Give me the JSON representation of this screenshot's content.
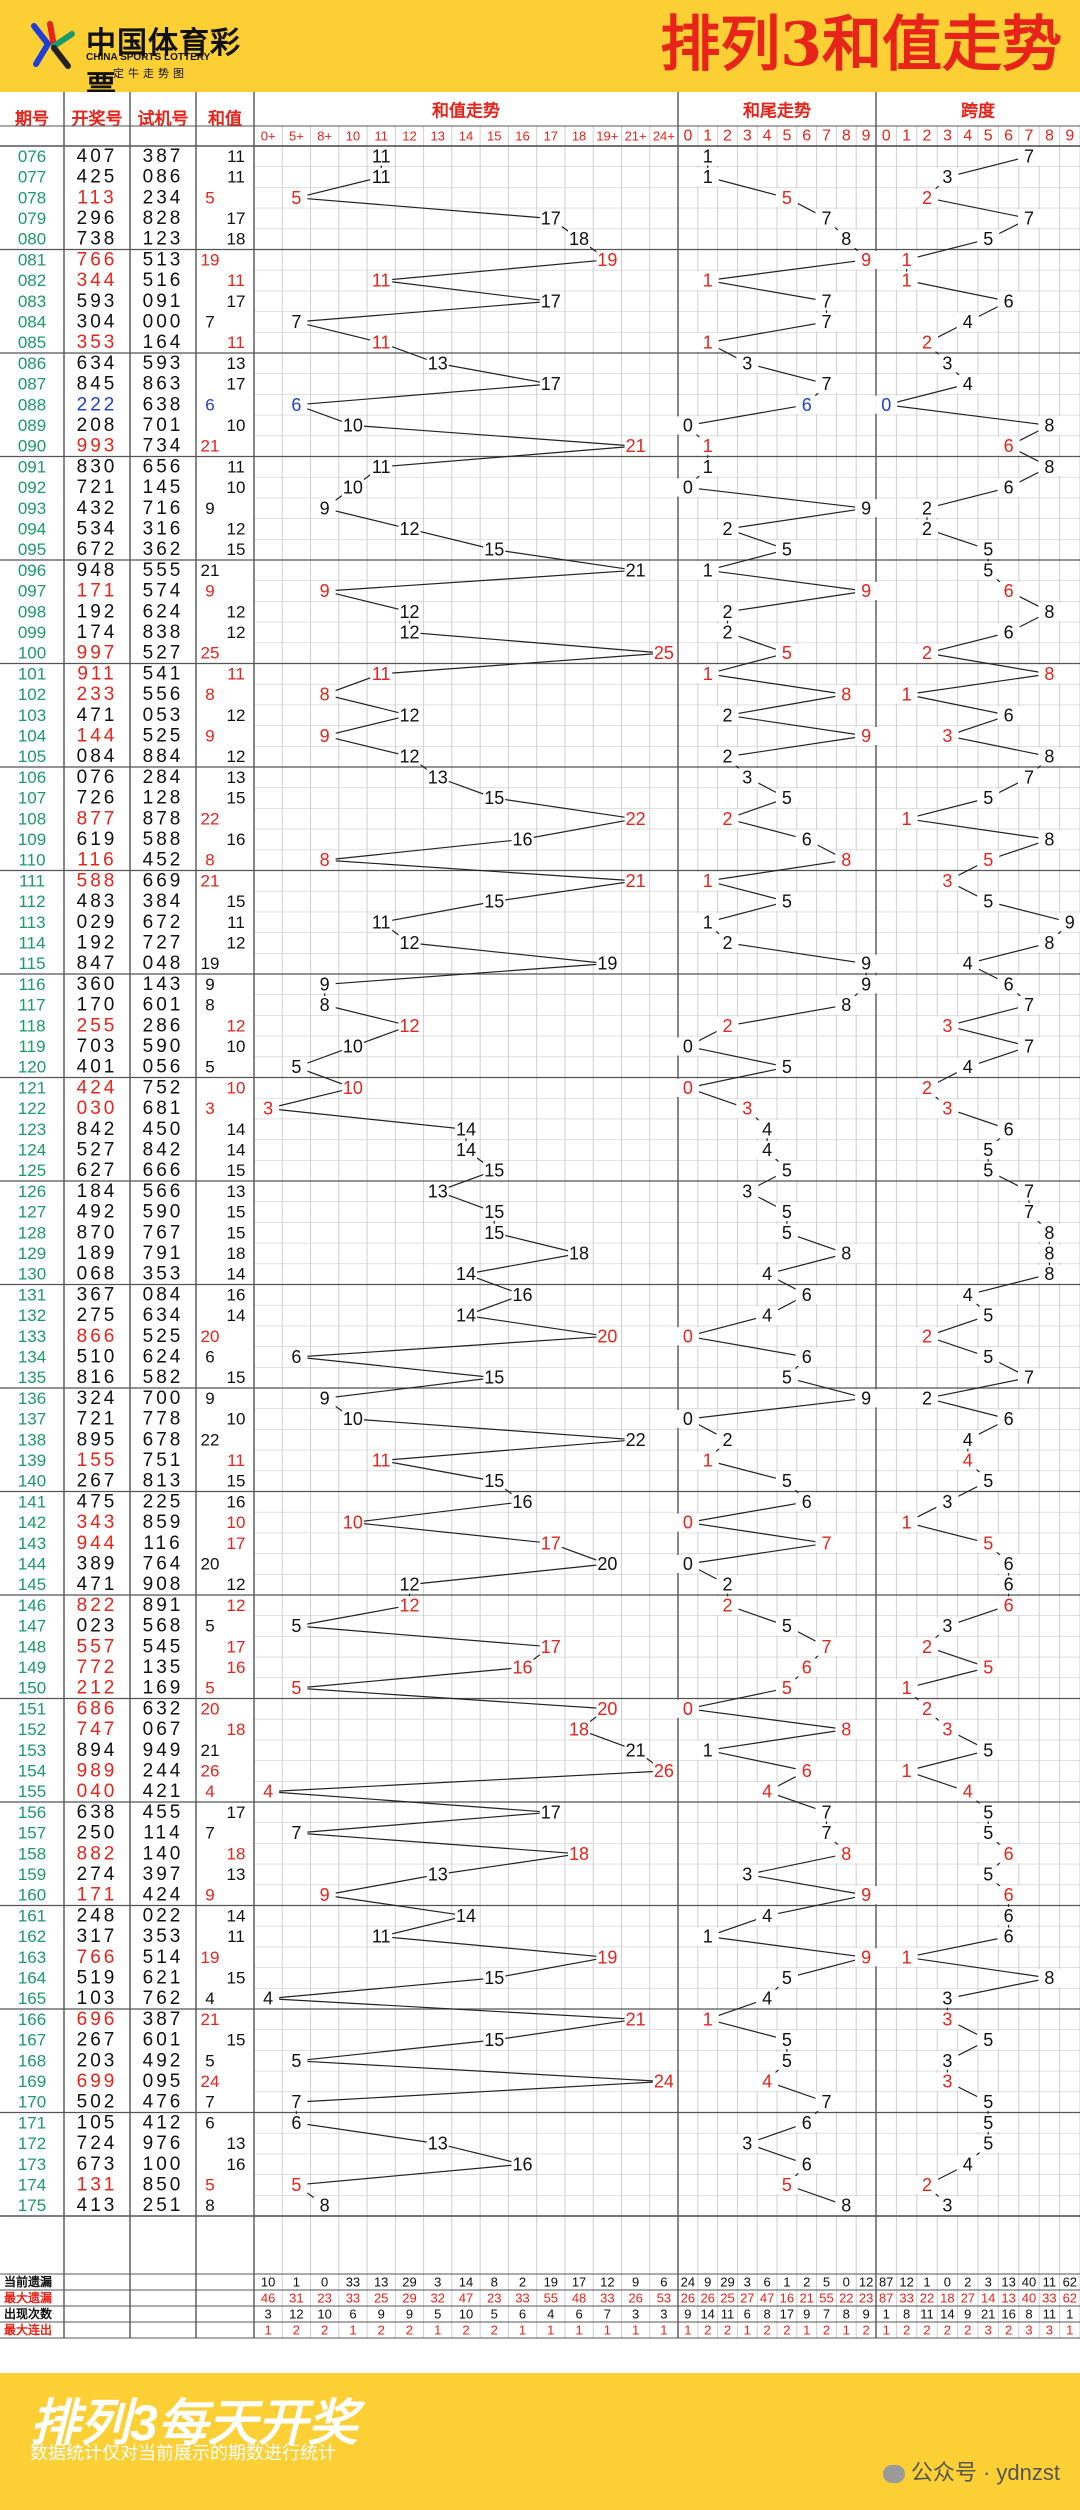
{
  "header": {
    "logo_main": "中国体育彩票",
    "logo_en": "CHINA SPORTS LOTTERY",
    "logo_sub": "一定牛走势图",
    "title": "排列3和值走势"
  },
  "footer": {
    "title": "排列3每天开奖",
    "note": "数据统计仅对当前展示的期数进行统计",
    "wechat": "公众号 · ydnzst"
  },
  "colors": {
    "header_bg": "#fccf35",
    "title_red": "#e8231a",
    "issue_green": "#1a9a6b",
    "hit_red": "#e8231a",
    "hit_blue": "#1f3ed8",
    "grid": "#cfcfcf",
    "group_line": "#555555"
  },
  "chart_data": {
    "type": "table",
    "title": "排列3和值走势",
    "columns": {
      "issue": "期号",
      "draw": "开奖号",
      "test": "试机号",
      "sum": "和值",
      "sum_trend": "和值走势",
      "tail_trend": "和尾走势",
      "span": "跨度"
    },
    "sum_bins": [
      "0+",
      "5+",
      "8+",
      "10",
      "11",
      "12",
      "13",
      "14",
      "15",
      "16",
      "17",
      "18",
      "19+",
      "21+",
      "24+"
    ],
    "digits": [
      "0",
      "1",
      "2",
      "3",
      "4",
      "5",
      "6",
      "7",
      "8",
      "9"
    ],
    "rows": [
      {
        "issue": "076",
        "draw": "407",
        "test": "387",
        "sum": 11,
        "color": "black"
      },
      {
        "issue": "077",
        "draw": "425",
        "test": "086",
        "sum": 11,
        "color": "black"
      },
      {
        "issue": "078",
        "draw": "113",
        "test": "234",
        "sum": 5,
        "color": "red"
      },
      {
        "issue": "079",
        "draw": "296",
        "test": "828",
        "sum": 17,
        "color": "black"
      },
      {
        "issue": "080",
        "draw": "738",
        "test": "123",
        "sum": 18,
        "color": "black"
      },
      {
        "issue": "081",
        "draw": "766",
        "test": "513",
        "sum": 19,
        "color": "red"
      },
      {
        "issue": "082",
        "draw": "344",
        "test": "516",
        "sum": 11,
        "color": "red"
      },
      {
        "issue": "083",
        "draw": "593",
        "test": "091",
        "sum": 17,
        "color": "black"
      },
      {
        "issue": "084",
        "draw": "304",
        "test": "000",
        "sum": 7,
        "color": "black"
      },
      {
        "issue": "085",
        "draw": "353",
        "test": "164",
        "sum": 11,
        "color": "red"
      },
      {
        "issue": "086",
        "draw": "634",
        "test": "593",
        "sum": 13,
        "color": "black"
      },
      {
        "issue": "087",
        "draw": "845",
        "test": "863",
        "sum": 17,
        "color": "black"
      },
      {
        "issue": "088",
        "draw": "222",
        "test": "638",
        "sum": 6,
        "color": "blue"
      },
      {
        "issue": "089",
        "draw": "208",
        "test": "701",
        "sum": 10,
        "color": "black"
      },
      {
        "issue": "090",
        "draw": "993",
        "test": "734",
        "sum": 21,
        "color": "red"
      },
      {
        "issue": "091",
        "draw": "830",
        "test": "656",
        "sum": 11,
        "color": "black"
      },
      {
        "issue": "092",
        "draw": "721",
        "test": "145",
        "sum": 10,
        "color": "black"
      },
      {
        "issue": "093",
        "draw": "432",
        "test": "716",
        "sum": 9,
        "color": "black"
      },
      {
        "issue": "094",
        "draw": "534",
        "test": "316",
        "sum": 12,
        "color": "black"
      },
      {
        "issue": "095",
        "draw": "672",
        "test": "362",
        "sum": 15,
        "color": "black"
      },
      {
        "issue": "096",
        "draw": "948",
        "test": "555",
        "sum": 21,
        "color": "black"
      },
      {
        "issue": "097",
        "draw": "171",
        "test": "574",
        "sum": 9,
        "color": "red"
      },
      {
        "issue": "098",
        "draw": "192",
        "test": "624",
        "sum": 12,
        "color": "black"
      },
      {
        "issue": "099",
        "draw": "174",
        "test": "838",
        "sum": 12,
        "color": "black"
      },
      {
        "issue": "100",
        "draw": "997",
        "test": "527",
        "sum": 25,
        "color": "red"
      },
      {
        "issue": "101",
        "draw": "911",
        "test": "541",
        "sum": 11,
        "color": "red"
      },
      {
        "issue": "102",
        "draw": "233",
        "test": "556",
        "sum": 8,
        "color": "red"
      },
      {
        "issue": "103",
        "draw": "471",
        "test": "053",
        "sum": 12,
        "color": "black"
      },
      {
        "issue": "104",
        "draw": "144",
        "test": "525",
        "sum": 9,
        "color": "red"
      },
      {
        "issue": "105",
        "draw": "084",
        "test": "884",
        "sum": 12,
        "color": "black"
      },
      {
        "issue": "106",
        "draw": "076",
        "test": "284",
        "sum": 13,
        "color": "black"
      },
      {
        "issue": "107",
        "draw": "726",
        "test": "128",
        "sum": 15,
        "color": "black"
      },
      {
        "issue": "108",
        "draw": "877",
        "test": "878",
        "sum": 22,
        "color": "red"
      },
      {
        "issue": "109",
        "draw": "619",
        "test": "588",
        "sum": 16,
        "color": "black"
      },
      {
        "issue": "110",
        "draw": "116",
        "test": "452",
        "sum": 8,
        "color": "red"
      },
      {
        "issue": "111",
        "draw": "588",
        "test": "669",
        "sum": 21,
        "color": "red"
      },
      {
        "issue": "112",
        "draw": "483",
        "test": "384",
        "sum": 15,
        "color": "black"
      },
      {
        "issue": "113",
        "draw": "029",
        "test": "672",
        "sum": 11,
        "color": "black"
      },
      {
        "issue": "114",
        "draw": "192",
        "test": "727",
        "sum": 12,
        "color": "black"
      },
      {
        "issue": "115",
        "draw": "847",
        "test": "048",
        "sum": 19,
        "color": "black"
      },
      {
        "issue": "116",
        "draw": "360",
        "test": "143",
        "sum": 9,
        "color": "black"
      },
      {
        "issue": "117",
        "draw": "170",
        "test": "601",
        "sum": 8,
        "color": "black"
      },
      {
        "issue": "118",
        "draw": "255",
        "test": "286",
        "sum": 12,
        "color": "red"
      },
      {
        "issue": "119",
        "draw": "703",
        "test": "590",
        "sum": 10,
        "color": "black"
      },
      {
        "issue": "120",
        "draw": "401",
        "test": "056",
        "sum": 5,
        "color": "black"
      },
      {
        "issue": "121",
        "draw": "424",
        "test": "752",
        "sum": 10,
        "color": "red"
      },
      {
        "issue": "122",
        "draw": "030",
        "test": "681",
        "sum": 3,
        "color": "red"
      },
      {
        "issue": "123",
        "draw": "842",
        "test": "450",
        "sum": 14,
        "color": "black"
      },
      {
        "issue": "124",
        "draw": "527",
        "test": "842",
        "sum": 14,
        "color": "black"
      },
      {
        "issue": "125",
        "draw": "627",
        "test": "666",
        "sum": 15,
        "color": "black"
      },
      {
        "issue": "126",
        "draw": "184",
        "test": "566",
        "sum": 13,
        "color": "black"
      },
      {
        "issue": "127",
        "draw": "492",
        "test": "590",
        "sum": 15,
        "color": "black"
      },
      {
        "issue": "128",
        "draw": "870",
        "test": "767",
        "sum": 15,
        "color": "black"
      },
      {
        "issue": "129",
        "draw": "189",
        "test": "791",
        "sum": 18,
        "color": "black"
      },
      {
        "issue": "130",
        "draw": "068",
        "test": "353",
        "sum": 14,
        "color": "black"
      },
      {
        "issue": "131",
        "draw": "367",
        "test": "084",
        "sum": 16,
        "color": "black"
      },
      {
        "issue": "132",
        "draw": "275",
        "test": "634",
        "sum": 14,
        "color": "black"
      },
      {
        "issue": "133",
        "draw": "866",
        "test": "525",
        "sum": 20,
        "color": "red"
      },
      {
        "issue": "134",
        "draw": "510",
        "test": "624",
        "sum": 6,
        "color": "black"
      },
      {
        "issue": "135",
        "draw": "816",
        "test": "582",
        "sum": 15,
        "color": "black"
      },
      {
        "issue": "136",
        "draw": "324",
        "test": "700",
        "sum": 9,
        "color": "black"
      },
      {
        "issue": "137",
        "draw": "721",
        "test": "778",
        "sum": 10,
        "color": "black"
      },
      {
        "issue": "138",
        "draw": "895",
        "test": "678",
        "sum": 22,
        "color": "black"
      },
      {
        "issue": "139",
        "draw": "155",
        "test": "751",
        "sum": 11,
        "color": "red"
      },
      {
        "issue": "140",
        "draw": "267",
        "test": "813",
        "sum": 15,
        "color": "black"
      },
      {
        "issue": "141",
        "draw": "475",
        "test": "225",
        "sum": 16,
        "color": "black"
      },
      {
        "issue": "142",
        "draw": "343",
        "test": "859",
        "sum": 10,
        "color": "red"
      },
      {
        "issue": "143",
        "draw": "944",
        "test": "116",
        "sum": 17,
        "color": "red"
      },
      {
        "issue": "144",
        "draw": "389",
        "test": "764",
        "sum": 20,
        "color": "black"
      },
      {
        "issue": "145",
        "draw": "471",
        "test": "908",
        "sum": 12,
        "color": "black"
      },
      {
        "issue": "146",
        "draw": "822",
        "test": "891",
        "sum": 12,
        "color": "red"
      },
      {
        "issue": "147",
        "draw": "023",
        "test": "568",
        "sum": 5,
        "color": "black"
      },
      {
        "issue": "148",
        "draw": "557",
        "test": "545",
        "sum": 17,
        "color": "red"
      },
      {
        "issue": "149",
        "draw": "772",
        "test": "135",
        "sum": 16,
        "color": "red"
      },
      {
        "issue": "150",
        "draw": "212",
        "test": "169",
        "sum": 5,
        "color": "red"
      },
      {
        "issue": "151",
        "draw": "686",
        "test": "632",
        "sum": 20,
        "color": "red"
      },
      {
        "issue": "152",
        "draw": "747",
        "test": "067",
        "sum": 18,
        "color": "red"
      },
      {
        "issue": "153",
        "draw": "894",
        "test": "949",
        "sum": 21,
        "color": "black"
      },
      {
        "issue": "154",
        "draw": "989",
        "test": "244",
        "sum": 26,
        "color": "red"
      },
      {
        "issue": "155",
        "draw": "040",
        "test": "421",
        "sum": 4,
        "color": "red"
      },
      {
        "issue": "156",
        "draw": "638",
        "test": "455",
        "sum": 17,
        "color": "black"
      },
      {
        "issue": "157",
        "draw": "250",
        "test": "114",
        "sum": 7,
        "color": "black"
      },
      {
        "issue": "158",
        "draw": "882",
        "test": "140",
        "sum": 18,
        "color": "red"
      },
      {
        "issue": "159",
        "draw": "274",
        "test": "397",
        "sum": 13,
        "color": "black"
      },
      {
        "issue": "160",
        "draw": "171",
        "test": "424",
        "sum": 9,
        "color": "red"
      },
      {
        "issue": "161",
        "draw": "248",
        "test": "022",
        "sum": 14,
        "color": "black"
      },
      {
        "issue": "162",
        "draw": "317",
        "test": "353",
        "sum": 11,
        "color": "black"
      },
      {
        "issue": "163",
        "draw": "766",
        "test": "514",
        "sum": 19,
        "color": "red"
      },
      {
        "issue": "164",
        "draw": "519",
        "test": "621",
        "sum": 15,
        "color": "black"
      },
      {
        "issue": "165",
        "draw": "103",
        "test": "762",
        "sum": 4,
        "color": "black"
      },
      {
        "issue": "166",
        "draw": "696",
        "test": "387",
        "sum": 21,
        "color": "red"
      },
      {
        "issue": "167",
        "draw": "267",
        "test": "601",
        "sum": 15,
        "color": "black"
      },
      {
        "issue": "168",
        "draw": "203",
        "test": "492",
        "sum": 5,
        "color": "black"
      },
      {
        "issue": "169",
        "draw": "699",
        "test": "095",
        "sum": 24,
        "color": "red"
      },
      {
        "issue": "170",
        "draw": "502",
        "test": "476",
        "sum": 7,
        "color": "black"
      },
      {
        "issue": "171",
        "draw": "105",
        "test": "412",
        "sum": 6,
        "color": "black"
      },
      {
        "issue": "172",
        "draw": "724",
        "test": "976",
        "sum": 13,
        "color": "black"
      },
      {
        "issue": "173",
        "draw": "673",
        "test": "100",
        "sum": 16,
        "color": "black"
      },
      {
        "issue": "174",
        "draw": "131",
        "test": "850",
        "sum": 5,
        "color": "red"
      },
      {
        "issue": "175",
        "draw": "413",
        "test": "251",
        "sum": 8,
        "color": "black"
      }
    ],
    "stats": {
      "labels": [
        "当前遗漏",
        "最大遗漏",
        "出现次数",
        "最大连出"
      ],
      "label_colors": [
        "black",
        "red",
        "black",
        "red"
      ],
      "sum": [
        [
          10,
          1,
          0,
          33,
          13,
          29,
          3,
          14,
          8,
          2,
          19,
          17,
          12,
          9,
          6
        ],
        [
          46,
          31,
          23,
          33,
          25,
          29,
          32,
          47,
          23,
          33,
          55,
          48,
          33,
          26,
          53
        ],
        [
          3,
          12,
          10,
          6,
          9,
          9,
          5,
          10,
          5,
          6,
          4,
          6,
          7,
          3,
          3
        ],
        [
          1,
          2,
          2,
          1,
          2,
          2,
          1,
          2,
          2,
          1,
          1,
          1,
          1,
          1,
          1
        ]
      ],
      "tail": [
        [
          24,
          9,
          29,
          3,
          6,
          1,
          2,
          5,
          0,
          12
        ],
        [
          26,
          26,
          25,
          27,
          47,
          16,
          21,
          55,
          22,
          23
        ],
        [
          9,
          14,
          11,
          6,
          8,
          17,
          9,
          7,
          8,
          9
        ],
        [
          1,
          2,
          2,
          1,
          2,
          2,
          1,
          2,
          1,
          2
        ]
      ],
      "span": [
        [
          87,
          12,
          1,
          0,
          2,
          3,
          13,
          40,
          11,
          62
        ],
        [
          87,
          33,
          22,
          18,
          27,
          14,
          13,
          40,
          33,
          62
        ],
        [
          1,
          8,
          11,
          14,
          9,
          21,
          16,
          8,
          11,
          1
        ],
        [
          1,
          2,
          2,
          2,
          2,
          3,
          2,
          3,
          3,
          1
        ]
      ]
    }
  }
}
